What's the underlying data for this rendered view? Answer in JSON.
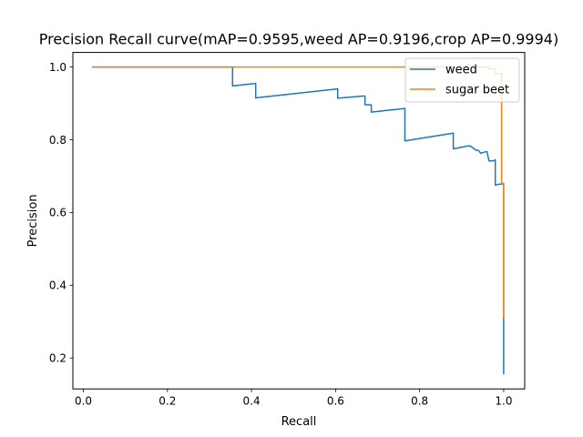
{
  "chart_data": {
    "type": "line",
    "title": "Precision Recall curve(mAP=0.9595,weed AP=0.9196,crop AP=0.9994)",
    "xlabel": "Recall",
    "ylabel": "Precision",
    "xlim": [
      -0.025,
      1.05
    ],
    "ylim": [
      0.115,
      1.04
    ],
    "xticks": [
      "0.0",
      "0.2",
      "0.4",
      "0.6",
      "0.8",
      "1.0"
    ],
    "xtick_values": [
      0.0,
      0.2,
      0.4,
      0.6,
      0.8,
      1.0
    ],
    "yticks": [
      "0.2",
      "0.4",
      "0.6",
      "0.8",
      "1.0"
    ],
    "ytick_values": [
      0.2,
      0.4,
      0.6,
      0.8,
      1.0
    ],
    "grid": false,
    "legend_position": "top-right",
    "series": [
      {
        "name": "weed",
        "color": "#1f77b4",
        "x": [
          0.02,
          0.355,
          0.355,
          0.41,
          0.41,
          0.605,
          0.605,
          0.665,
          0.67,
          0.67,
          0.685,
          0.685,
          0.765,
          0.765,
          0.88,
          0.88,
          0.915,
          0.92,
          0.935,
          0.94,
          0.945,
          0.96,
          0.965,
          0.975,
          0.98,
          0.98,
          0.99,
          0.995,
          1.0,
          1.0,
          1.0
        ],
        "y": [
          1.0,
          1.0,
          0.948,
          0.955,
          0.915,
          0.94,
          0.914,
          0.92,
          0.92,
          0.896,
          0.896,
          0.876,
          0.886,
          0.797,
          0.818,
          0.775,
          0.783,
          0.783,
          0.771,
          0.771,
          0.763,
          0.768,
          0.742,
          0.742,
          0.745,
          0.675,
          0.678,
          0.678,
          0.68,
          0.31,
          0.155
        ]
      },
      {
        "name": "sugar beet",
        "color": "#ff7f0e",
        "x": [
          0.02,
          0.965,
          0.965,
          0.98,
          0.98,
          0.995,
          0.995,
          1.0,
          1.0
        ],
        "y": [
          1.0,
          1.0,
          0.995,
          0.995,
          0.982,
          0.982,
          0.68,
          0.68,
          0.31
        ]
      }
    ]
  }
}
